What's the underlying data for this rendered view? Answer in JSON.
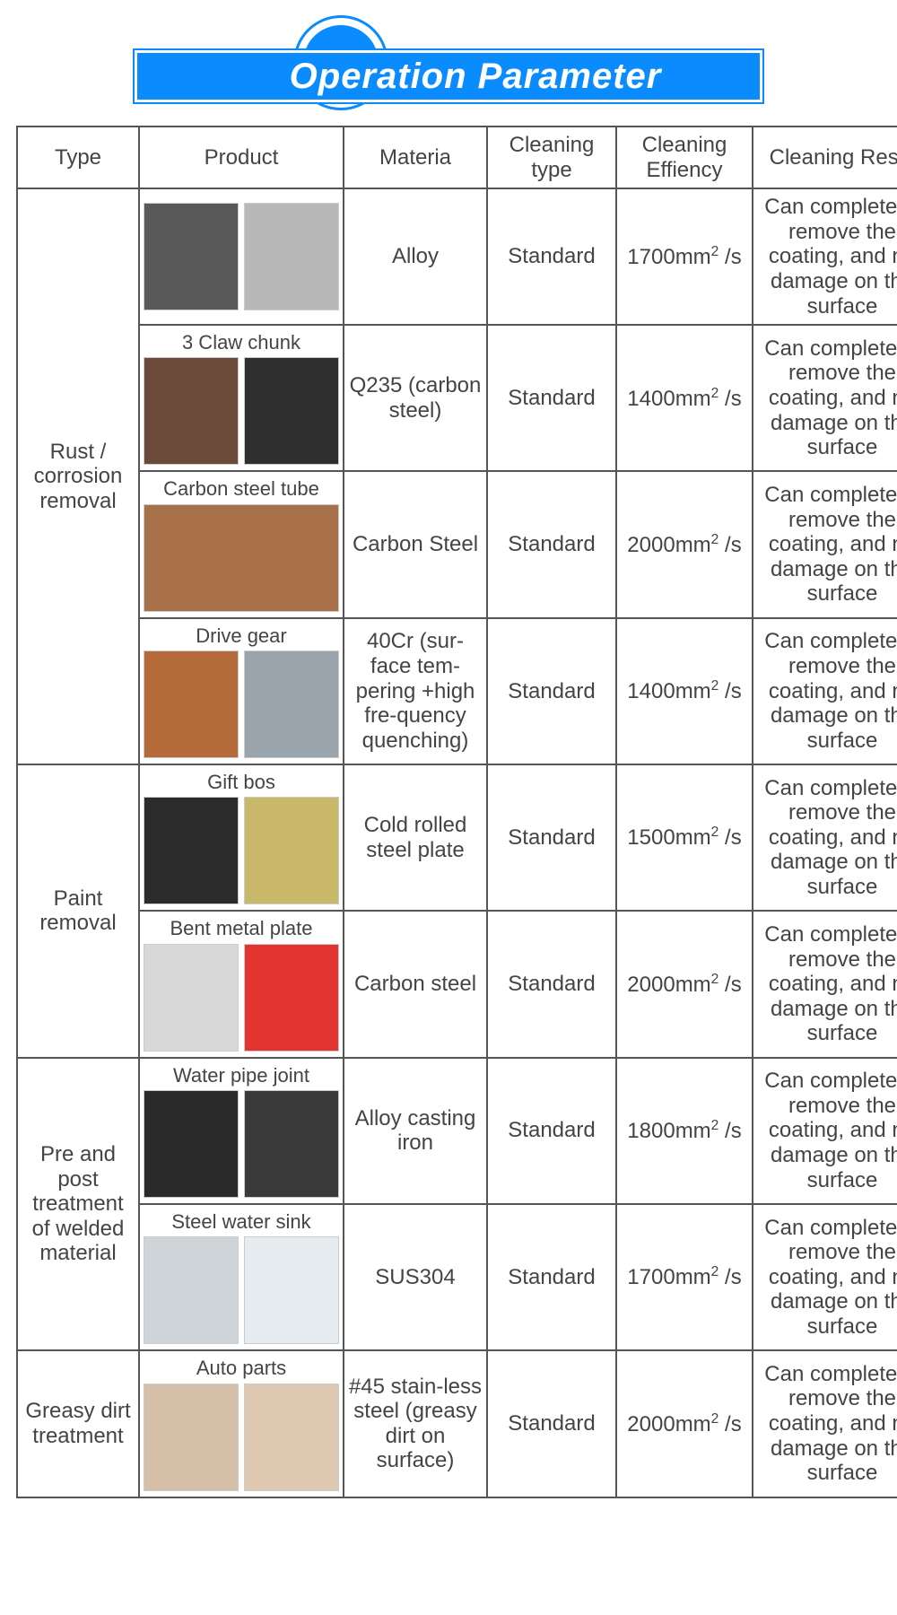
{
  "banner": {
    "title": "Operation Parameter"
  },
  "headers": {
    "type": "Type",
    "product": "Product",
    "material": "Materia",
    "cleaning_type": "Cleaning type",
    "cleaning_eff": "Cleaning Effiency",
    "cleaning_result": "Cleaning Resul"
  },
  "groups": [
    {
      "type_label": "Rust / corrosion removal",
      "rows": [
        {
          "product_label": "",
          "material": "Alloy",
          "cleaning_type": "Standard",
          "efficiency_value": "1700mm",
          "efficiency_unit": " /s",
          "result": "Can complete-ly remove the coating, and no damage on the surface",
          "swatches": [
            "#595959",
            "#b8b8b8"
          ]
        },
        {
          "product_label": "3 Claw chunk",
          "material": "Q235 (carbon steel)",
          "cleaning_type": "Standard",
          "efficiency_value": "1400mm",
          "efficiency_unit": " /s",
          "result": "Can complete-ly remove the coating, and no damage on the surface",
          "swatches": [
            "#6b4a3a",
            "#2f2f2f"
          ]
        },
        {
          "product_label": "Carbon steel tube",
          "material": "Carbon Steel",
          "cleaning_type": "Standard",
          "efficiency_value": "2000mm",
          "efficiency_unit": " /s",
          "result": "Can complete-ly remove the coating, and no damage on the surface",
          "swatches": [
            "#a87048"
          ]
        },
        {
          "product_label": "Drive gear",
          "material": "40Cr (sur-face tem-pering +high fre-quency quenching)",
          "cleaning_type": "Standard",
          "efficiency_value": "1400mm",
          "efficiency_unit": " /s",
          "result": "Can complete-ly remove the coating, and no damage on the surface",
          "swatches": [
            "#b56a3a",
            "#9aa4ad"
          ]
        }
      ]
    },
    {
      "type_label": "Paint removal",
      "rows": [
        {
          "product_label": "Gift bos",
          "material": "Cold rolled steel plate",
          "cleaning_type": "Standard",
          "efficiency_value": "1500mm",
          "efficiency_unit": " /s",
          "result": "Can complete-ly remove the coating, and no damage on the surface",
          "swatches": [
            "#2b2b2b",
            "#c9b86a"
          ]
        },
        {
          "product_label": "Bent metal plate",
          "material": "Carbon steel",
          "cleaning_type": "Standard",
          "efficiency_value": "2000mm",
          "efficiency_unit": " /s",
          "result": "Can complete-ly remove the coating, and no damage on the surface",
          "swatches": [
            "#d8d8d8",
            "#e3342f"
          ]
        }
      ]
    },
    {
      "type_label": "Pre and post treatment of welded material",
      "rows": [
        {
          "product_label": "Water pipe joint",
          "material": "Alloy casting iron",
          "cleaning_type": "Standard",
          "efficiency_value": "1800mm",
          "efficiency_unit": " /s",
          "result": "Can complete-ly remove the coating, and no damage on the surface",
          "swatches": [
            "#2a2a2a",
            "#3a3a3a"
          ]
        },
        {
          "product_label": "Steel water sink",
          "material": "SUS304",
          "cleaning_type": "Standard",
          "efficiency_value": "1700mm",
          "efficiency_unit": " /s",
          "result": "Can complete-ly remove the coating, and no damage on the surface",
          "swatches": [
            "#cfd4d8",
            "#e6ebef"
          ]
        }
      ]
    },
    {
      "type_label": "Greasy dirt treatment",
      "rows": [
        {
          "product_label": "Auto parts",
          "material": "#45 stain-less steel (greasy dirt on surface)",
          "cleaning_type": "Standard",
          "efficiency_value": "2000mm",
          "efficiency_unit": " /s",
          "result": "Can complete-ly remove the coating, and no damage on the surface",
          "swatches": [
            "#d6bfa8",
            "#e0c9b2"
          ]
        }
      ]
    }
  ],
  "colors": {
    "banner_bg": "#0a8cff",
    "border": "#555555",
    "text": "#444444"
  }
}
